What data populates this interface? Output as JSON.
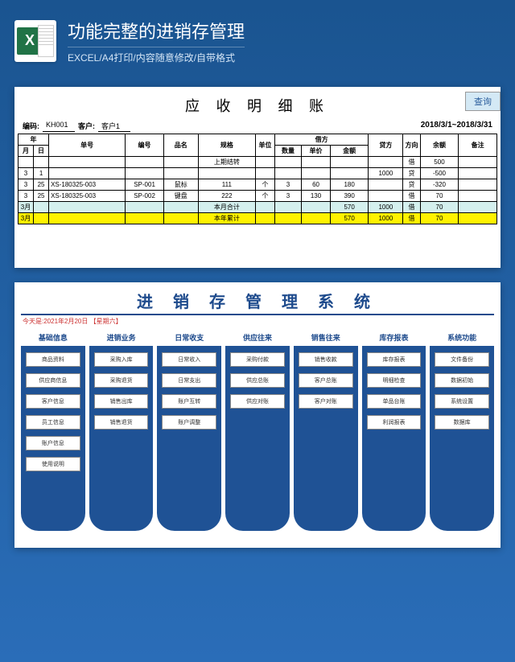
{
  "header": {
    "title": "功能完整的进销存管理",
    "subtitle": "EXCEL/A4打印/内容随意修改/自带格式"
  },
  "ledger": {
    "title": "应 收 明 细 账",
    "query_btn": "查询",
    "code_label": "编码:",
    "code_value": "KH001",
    "customer_label": "客户:",
    "customer_value": "客户1",
    "date_range": "2018/3/1~2018/3/31",
    "headers": {
      "year": "年",
      "month": "月",
      "day": "日",
      "doc_no": "单号",
      "item_no": "编号",
      "item_name": "品名",
      "spec": "规格",
      "unit": "单位",
      "debit": "借方",
      "qty": "数量",
      "price": "单价",
      "amount": "金额",
      "credit": "贷方",
      "dir": "方向",
      "balance": "余额",
      "remark": "备注"
    },
    "rows": [
      {
        "m": "",
        "d": "",
        "doc": "",
        "no": "",
        "name": "",
        "spec": "上期结转",
        "unit": "",
        "qty": "",
        "price": "",
        "amt": "",
        "credit": "",
        "dir": "借",
        "bal": "500",
        "note": ""
      },
      {
        "m": "3",
        "d": "1",
        "doc": "",
        "no": "",
        "name": "",
        "spec": "",
        "unit": "",
        "qty": "",
        "price": "",
        "amt": "",
        "credit": "1000",
        "dir": "贷",
        "bal": "-500",
        "note": ""
      },
      {
        "m": "3",
        "d": "25",
        "doc": "XS-180325-003",
        "no": "SP-001",
        "name": "鼠标",
        "spec": "111",
        "unit": "个",
        "qty": "3",
        "price": "60",
        "amt": "180",
        "credit": "",
        "dir": "贷",
        "bal": "-320",
        "note": ""
      },
      {
        "m": "3",
        "d": "25",
        "doc": "XS-180325-003",
        "no": "SP-002",
        "name": "键盘",
        "spec": "222",
        "unit": "个",
        "qty": "3",
        "price": "130",
        "amt": "390",
        "credit": "",
        "dir": "借",
        "bal": "70",
        "note": ""
      },
      {
        "m": "3月",
        "d": "",
        "doc": "",
        "no": "",
        "name": "",
        "spec": "本月合计",
        "unit": "",
        "qty": "",
        "price": "",
        "amt": "570",
        "credit": "1000",
        "dir": "借",
        "bal": "70",
        "note": "",
        "cls": "row-cyan"
      },
      {
        "m": "3月",
        "d": "",
        "doc": "",
        "no": "",
        "name": "",
        "spec": "本年累计",
        "unit": "",
        "qty": "",
        "price": "",
        "amt": "570",
        "credit": "1000",
        "dir": "借",
        "bal": "70",
        "note": "",
        "cls": "row-yellow"
      }
    ]
  },
  "system": {
    "title": "进 销 存 管 理 系 统",
    "date_text": "今天是:2021年2月20日 【星期六】",
    "columns": [
      {
        "header": "基础信息",
        "items": [
          "商品资料",
          "供应商信息",
          "客户信息",
          "员工信息",
          "账户信息",
          "使用说明"
        ]
      },
      {
        "header": "进销业务",
        "items": [
          "采购入库",
          "采购退货",
          "销售出库",
          "销售退货"
        ]
      },
      {
        "header": "日常收支",
        "items": [
          "日常收入",
          "日常支出",
          "账户互转",
          "账户调整"
        ]
      },
      {
        "header": "供应往来",
        "items": [
          "采购付款",
          "供应总账",
          "供应对账"
        ]
      },
      {
        "header": "销售往来",
        "items": [
          "销售收款",
          "客户总账",
          "客户对账"
        ]
      },
      {
        "header": "库存报表",
        "items": [
          "库存报表",
          "明细检查",
          "单品台账",
          "利润报表"
        ]
      },
      {
        "header": "系统功能",
        "items": [
          "文件备份",
          "数据初始",
          "系统设置",
          "数据库"
        ]
      }
    ]
  }
}
